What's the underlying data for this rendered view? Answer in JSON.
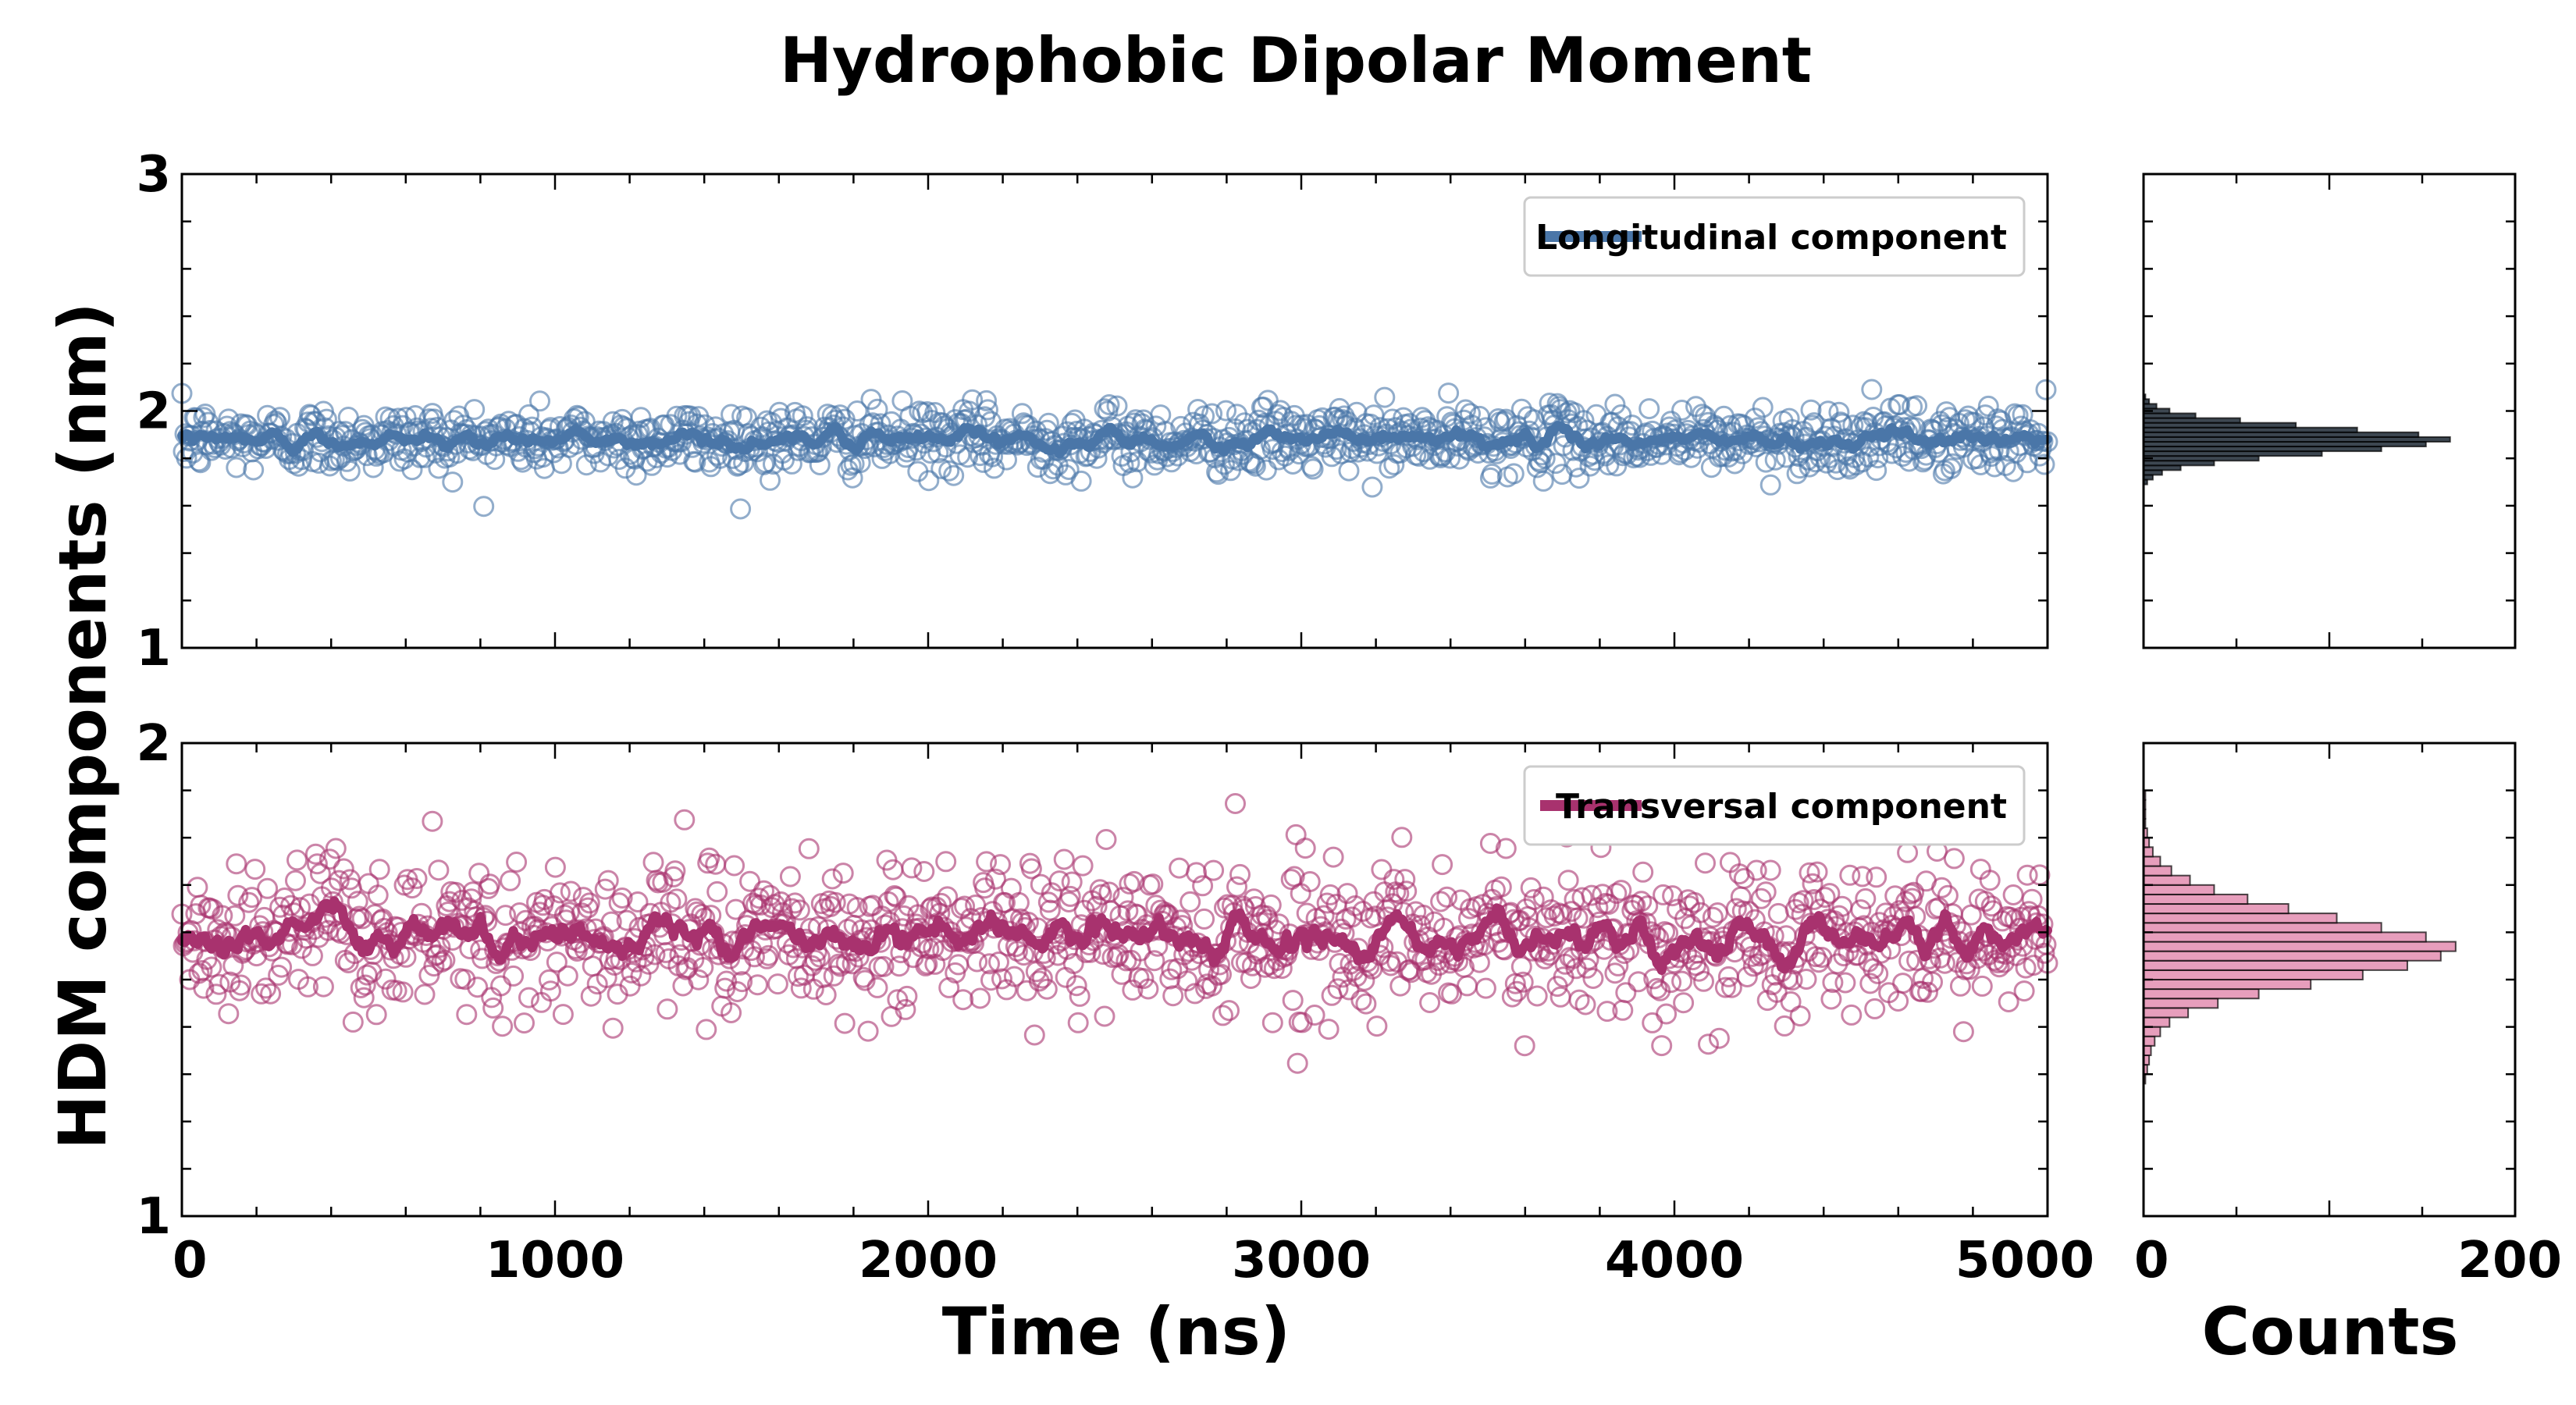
{
  "figure": {
    "title": "Hydrophobic Dipolar Moment",
    "ylabel": "HDM components (nm)",
    "xlabel_time": "Time (ns)",
    "xlabel_counts": "Counts"
  },
  "chart_data": [
    {
      "type": "scatter",
      "panel": "top",
      "title": "",
      "xlabel": "Time (ns)",
      "ylabel": "HDM components (nm)",
      "xlim": [
        0,
        5000
      ],
      "ylim": [
        1,
        3
      ],
      "x_ticks": [
        0,
        1000,
        2000,
        3000,
        4000,
        5000
      ],
      "y_ticks": [
        1,
        2,
        3
      ],
      "legend_location": "upper right",
      "series": [
        {
          "name": "Longitudinal component",
          "color": "#4a76a8",
          "marker": "open circle",
          "mean": 1.88,
          "sd": 0.07,
          "n_points": 1200,
          "running_mean_line": true
        }
      ]
    },
    {
      "type": "bar",
      "panel": "top-histogram",
      "orientation": "horizontal",
      "xlim": [
        0,
        200
      ],
      "ylim": [
        1,
        3
      ],
      "color": "#1b2733",
      "bins": [
        {
          "y": 1.7,
          "count": 2
        },
        {
          "y": 1.72,
          "count": 5
        },
        {
          "y": 1.74,
          "count": 10
        },
        {
          "y": 1.76,
          "count": 20
        },
        {
          "y": 1.78,
          "count": 38
        },
        {
          "y": 1.8,
          "count": 62
        },
        {
          "y": 1.82,
          "count": 96
        },
        {
          "y": 1.84,
          "count": 128
        },
        {
          "y": 1.86,
          "count": 152
        },
        {
          "y": 1.88,
          "count": 165
        },
        {
          "y": 1.9,
          "count": 148
        },
        {
          "y": 1.92,
          "count": 115
        },
        {
          "y": 1.94,
          "count": 82
        },
        {
          "y": 1.96,
          "count": 52
        },
        {
          "y": 1.98,
          "count": 28
        },
        {
          "y": 2.0,
          "count": 14
        },
        {
          "y": 2.02,
          "count": 7
        },
        {
          "y": 2.04,
          "count": 3
        },
        {
          "y": 2.06,
          "count": 1
        }
      ]
    },
    {
      "type": "scatter",
      "panel": "bottom",
      "title": "",
      "xlabel": "Time (ns)",
      "ylabel": "HDM components (nm)",
      "xlim": [
        0,
        5000
      ],
      "ylim": [
        1,
        2
      ],
      "x_ticks": [
        0,
        1000,
        2000,
        3000,
        4000,
        5000
      ],
      "x_tick_labels": [
        "0",
        "1000",
        "2000",
        "3000",
        "4000",
        "5000"
      ],
      "y_ticks": [
        1,
        2
      ],
      "legend_location": "upper right",
      "series": [
        {
          "name": "Transversal component",
          "color": "#a8326e",
          "marker": "open circle",
          "mean": 1.59,
          "sd": 0.08,
          "n_points": 1200,
          "running_mean_line": true
        }
      ]
    },
    {
      "type": "bar",
      "panel": "bottom-histogram",
      "orientation": "horizontal",
      "xlim": [
        0,
        200
      ],
      "x_ticks": [
        0,
        200
      ],
      "ylim": [
        1,
        2
      ],
      "color": "#e38db0",
      "bins": [
        {
          "y": 1.29,
          "count": 1
        },
        {
          "y": 1.31,
          "count": 2
        },
        {
          "y": 1.33,
          "count": 3
        },
        {
          "y": 1.35,
          "count": 4
        },
        {
          "y": 1.37,
          "count": 6
        },
        {
          "y": 1.39,
          "count": 9
        },
        {
          "y": 1.41,
          "count": 14
        },
        {
          "y": 1.43,
          "count": 24
        },
        {
          "y": 1.45,
          "count": 40
        },
        {
          "y": 1.47,
          "count": 62
        },
        {
          "y": 1.49,
          "count": 90
        },
        {
          "y": 1.51,
          "count": 118
        },
        {
          "y": 1.53,
          "count": 142
        },
        {
          "y": 1.55,
          "count": 160
        },
        {
          "y": 1.57,
          "count": 168
        },
        {
          "y": 1.59,
          "count": 152
        },
        {
          "y": 1.61,
          "count": 128
        },
        {
          "y": 1.63,
          "count": 104
        },
        {
          "y": 1.65,
          "count": 78
        },
        {
          "y": 1.67,
          "count": 56
        },
        {
          "y": 1.69,
          "count": 38
        },
        {
          "y": 1.71,
          "count": 25
        },
        {
          "y": 1.73,
          "count": 15
        },
        {
          "y": 1.75,
          "count": 9
        },
        {
          "y": 1.77,
          "count": 5
        },
        {
          "y": 1.79,
          "count": 3
        },
        {
          "y": 1.81,
          "count": 2
        },
        {
          "y": 1.83,
          "count": 1
        },
        {
          "y": 1.85,
          "count": 1
        },
        {
          "y": 1.87,
          "count": 1
        },
        {
          "y": 1.89,
          "count": 1
        }
      ]
    }
  ]
}
